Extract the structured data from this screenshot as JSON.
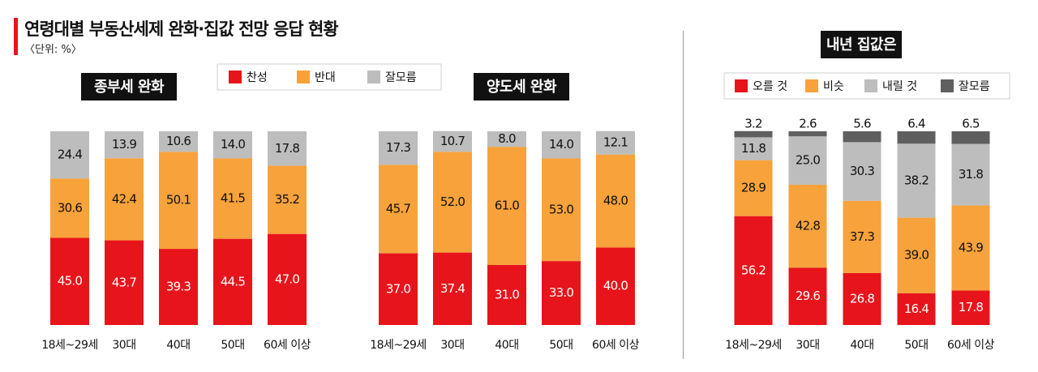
{
  "header": {
    "title": "연령대별 부동산세제 완화·집값 전망 응답 현황",
    "unit": "〈단위: %〉"
  },
  "colors": {
    "red": "#e8141b",
    "orange": "#f7a23b",
    "gray": "#bdbdbd",
    "dark": "#5f5f5f",
    "title_box": "#111111"
  },
  "chart_data": [
    {
      "type": "bar",
      "stacked": true,
      "title": "종부세 완화",
      "categories": [
        "18세~29세",
        "30대",
        "40대",
        "50대",
        "60세 이상"
      ],
      "series": [
        {
          "name": "찬성",
          "color": "#e8141b",
          "values": [
            45.0,
            43.7,
            39.3,
            44.5,
            47.0
          ]
        },
        {
          "name": "반대",
          "color": "#f7a23b",
          "values": [
            30.6,
            42.4,
            50.1,
            41.5,
            35.2
          ]
        },
        {
          "name": "잘모름",
          "color": "#bdbdbd",
          "values": [
            24.4,
            13.9,
            10.6,
            14.0,
            17.8
          ]
        }
      ],
      "labels": [
        [
          "45.0",
          "43.7",
          "39.3",
          "44.5",
          "47.0"
        ],
        [
          "30.6",
          "42.4",
          "50.1",
          "41.5",
          "35.2"
        ],
        [
          "24.4",
          "13.9",
          "10.6",
          "14.0",
          "17.8"
        ]
      ],
      "legend": "top"
    },
    {
      "type": "bar",
      "stacked": true,
      "title": "양도세 완화",
      "categories": [
        "18세~29세",
        "30대",
        "40대",
        "50대",
        "60세 이상"
      ],
      "series": [
        {
          "name": "찬성",
          "color": "#e8141b",
          "values": [
            37.0,
            37.4,
            31.0,
            33.0,
            40.0
          ]
        },
        {
          "name": "반대",
          "color": "#f7a23b",
          "values": [
            45.7,
            52.0,
            61.0,
            53.0,
            48.0
          ]
        },
        {
          "name": "잘모름",
          "color": "#bdbdbd",
          "values": [
            17.3,
            10.7,
            8.0,
            14.0,
            12.1
          ]
        }
      ],
      "labels": [
        [
          "37.0",
          "37.4",
          "31.0",
          "33.0",
          "40.0"
        ],
        [
          "45.7",
          "52.0",
          "61.0",
          "53.0",
          "48.0"
        ],
        [
          "17.3",
          "10.7",
          "8.0",
          "14.0",
          "12.1"
        ]
      ]
    },
    {
      "type": "bar",
      "stacked": true,
      "title": "내년 집값은",
      "categories": [
        "18세~29세",
        "30대",
        "40대",
        "50대",
        "60세 이상"
      ],
      "series": [
        {
          "name": "오를 것",
          "color": "#e8141b",
          "values": [
            56.2,
            29.6,
            26.8,
            16.4,
            17.8
          ]
        },
        {
          "name": "비슷",
          "color": "#f7a23b",
          "values": [
            28.9,
            42.8,
            37.3,
            39.0,
            43.9
          ]
        },
        {
          "name": "내릴 것",
          "color": "#bdbdbd",
          "values": [
            11.8,
            25.0,
            30.3,
            38.2,
            31.8
          ]
        },
        {
          "name": "잘모름",
          "color": "#5f5f5f",
          "values": [
            3.2,
            2.6,
            5.6,
            6.4,
            6.5
          ]
        }
      ],
      "labels": [
        [
          "56.2",
          "29.6",
          "26.8",
          "16.4",
          "17.8"
        ],
        [
          "28.9",
          "42.8",
          "37.3",
          "39.0",
          "43.9"
        ],
        [
          "11.8",
          "25.0",
          "30.3",
          "38.2",
          "31.8"
        ],
        [
          "3.2",
          "2.6",
          "5.6",
          "6.4",
          "6.5"
        ]
      ],
      "legend": "top"
    }
  ]
}
